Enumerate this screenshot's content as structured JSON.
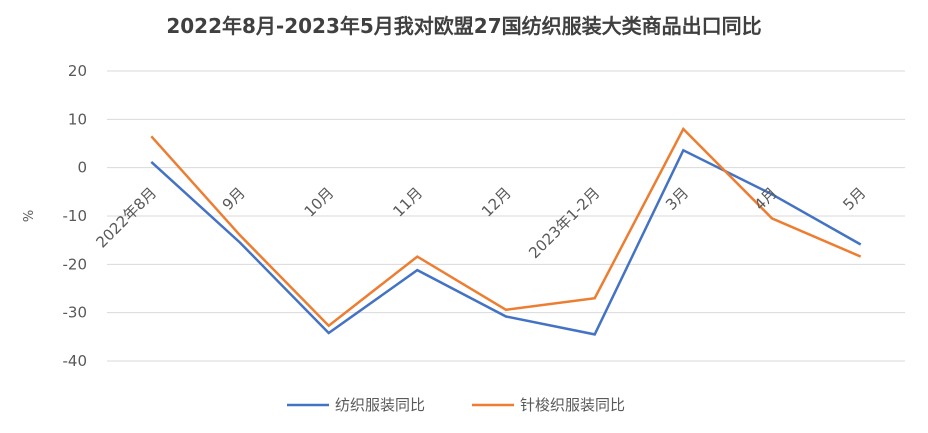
{
  "chart_data": {
    "type": "line",
    "title": "2022年8月-2023年5月我对欧盟27国纺织服装大类商品出口同比",
    "ylabel": "%",
    "xlabel": "",
    "categories": [
      "2022年8月",
      "9月",
      "10月",
      "11月",
      "12月",
      "2023年1-2月",
      "3月",
      "4月",
      "5月"
    ],
    "ylim": [
      -40,
      20
    ],
    "yticks": [
      20,
      10,
      0,
      -10,
      -20,
      -30,
      -40
    ],
    "grid": true,
    "legend_position": "bottom",
    "series": [
      {
        "name": "纺织服装同比",
        "color": "#4472C4",
        "values": [
          1.2,
          -15.5,
          -34.2,
          -21.2,
          -30.8,
          -34.5,
          3.6,
          -5.5,
          -15.9
        ]
      },
      {
        "name": "针梭织服装同比",
        "color": "#ED7D31",
        "values": [
          6.5,
          -14.0,
          -32.7,
          -18.4,
          -29.4,
          -27.0,
          8.0,
          -10.5,
          -18.4
        ]
      }
    ]
  }
}
